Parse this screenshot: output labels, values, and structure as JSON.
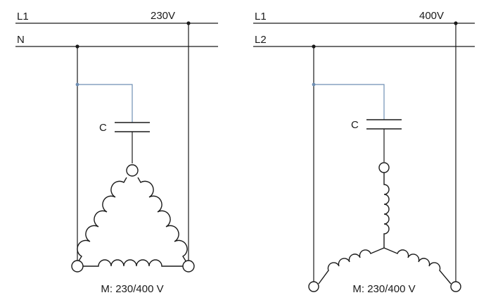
{
  "left": {
    "line1_label": "L1",
    "line2_label": "N",
    "voltage_label": "230V",
    "capacitor_label": "C",
    "motor_label": "M: 230/400 V",
    "winding": "delta"
  },
  "right": {
    "line1_label": "L1",
    "line2_label": "L2",
    "voltage_label": "400V",
    "capacitor_label": "C",
    "motor_label": "M: 230/400 V",
    "winding": "star"
  },
  "colors": {
    "wire": "#1a1a1a",
    "capacitor_tap": "#6f8fb3"
  }
}
